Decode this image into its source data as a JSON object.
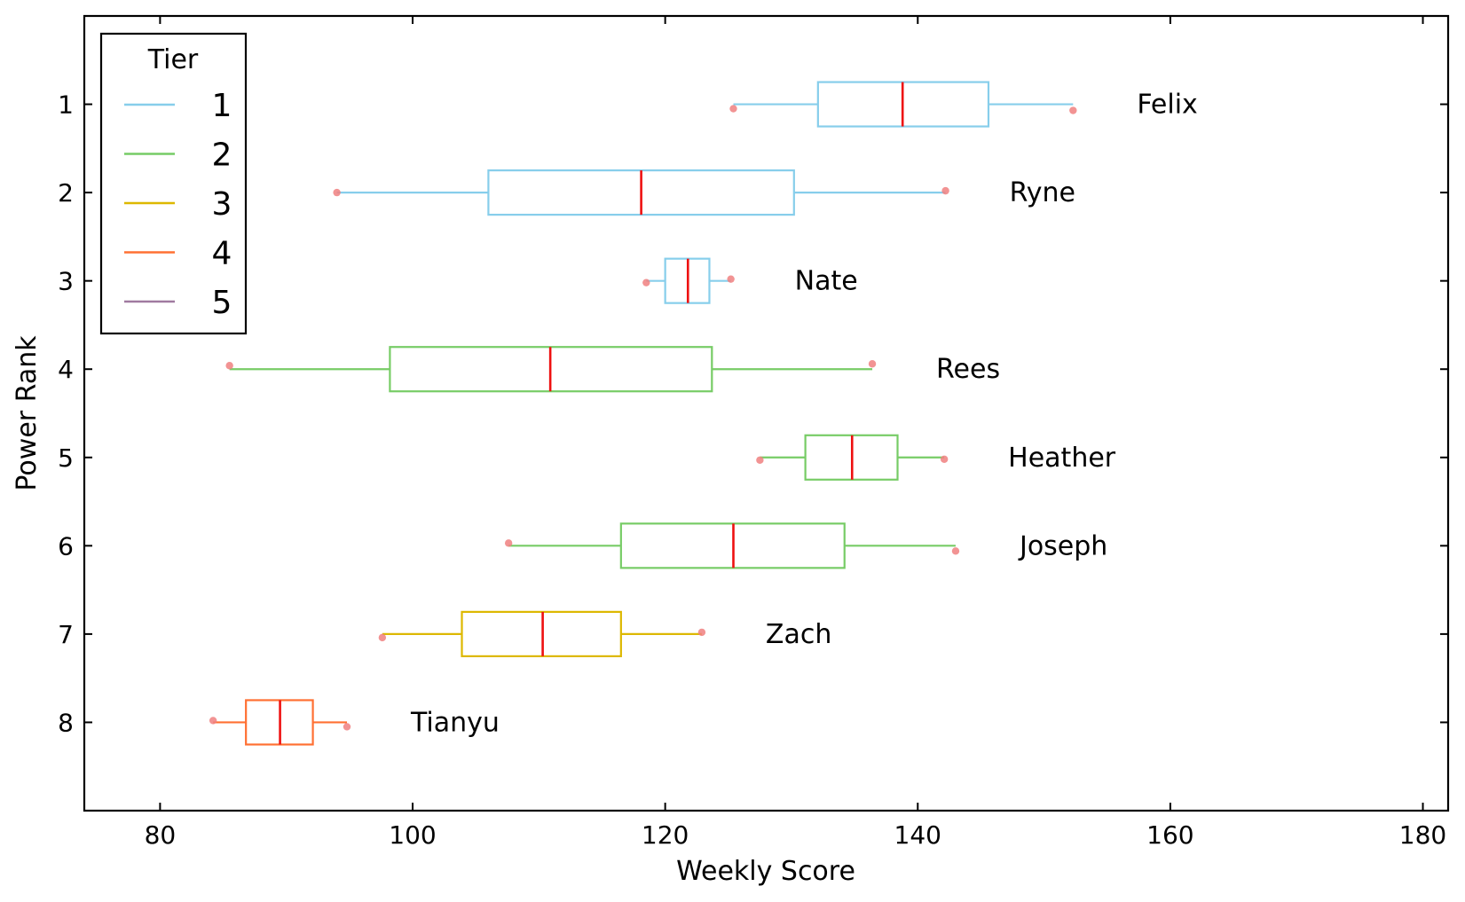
{
  "chart_data": {
    "type": "boxplot",
    "orientation": "horizontal",
    "xlabel": "Weekly Score",
    "ylabel": "Power Rank",
    "xlim": [
      74,
      182
    ],
    "ylim": [
      0,
      9
    ],
    "y_inverted": true,
    "xticks": [
      80,
      100,
      120,
      140,
      160,
      180
    ],
    "yticks": [
      1,
      2,
      3,
      4,
      5,
      6,
      7,
      8
    ],
    "legend": {
      "title": "Tier",
      "placement": "top-left",
      "entries": [
        {
          "label": "1",
          "color": "#87CEEB"
        },
        {
          "label": "2",
          "color": "#77CC66"
        },
        {
          "label": "3",
          "color": "#DDB800"
        },
        {
          "label": "4",
          "color": "#FF7033"
        },
        {
          "label": "5",
          "color": "#A07AA0"
        }
      ]
    },
    "median_color": "#EE1111",
    "extreme_point_color": "#F08080",
    "series": [
      {
        "rank": 1,
        "name": "Felix",
        "tier": "1",
        "min": 125.4,
        "q1": 132.1,
        "median": 138.8,
        "q3": 145.6,
        "max": 152.3,
        "points": [
          {
            "x": 125.4,
            "y": 1.05
          },
          {
            "x": 152.3,
            "y": 1.07
          }
        ]
      },
      {
        "rank": 2,
        "name": "Ryne",
        "tier": "1",
        "min": 94.0,
        "q1": 106.0,
        "median": 118.1,
        "q3": 130.2,
        "max": 142.2,
        "points": [
          {
            "x": 94.0,
            "y": 2.0
          },
          {
            "x": 142.2,
            "y": 1.98
          }
        ]
      },
      {
        "rank": 3,
        "name": "Nate",
        "tier": "1",
        "min": 118.5,
        "q1": 120.0,
        "median": 121.8,
        "q3": 123.5,
        "max": 125.2,
        "points": [
          {
            "x": 118.5,
            "y": 3.02
          },
          {
            "x": 125.2,
            "y": 2.98
          }
        ]
      },
      {
        "rank": 4,
        "name": "Rees",
        "tier": "2",
        "min": 85.5,
        "q1": 98.2,
        "median": 110.9,
        "q3": 123.7,
        "max": 136.4,
        "points": [
          {
            "x": 85.5,
            "y": 3.96
          },
          {
            "x": 136.4,
            "y": 3.94
          }
        ]
      },
      {
        "rank": 5,
        "name": "Heather",
        "tier": "2",
        "min": 127.5,
        "q1": 131.1,
        "median": 134.8,
        "q3": 138.4,
        "max": 142.1,
        "points": [
          {
            "x": 127.5,
            "y": 5.03
          },
          {
            "x": 142.1,
            "y": 5.02
          }
        ]
      },
      {
        "rank": 6,
        "name": "Joseph",
        "tier": "2",
        "min": 107.6,
        "q1": 116.5,
        "median": 125.4,
        "q3": 134.2,
        "max": 143.0,
        "points": [
          {
            "x": 107.6,
            "y": 5.97
          },
          {
            "x": 143.0,
            "y": 6.06
          }
        ]
      },
      {
        "rank": 7,
        "name": "Zach",
        "tier": "3",
        "min": 97.6,
        "q1": 103.9,
        "median": 110.3,
        "q3": 116.5,
        "max": 122.9,
        "points": [
          {
            "x": 97.6,
            "y": 7.04
          },
          {
            "x": 122.9,
            "y": 6.98
          }
        ]
      },
      {
        "rank": 8,
        "name": "Tianyu",
        "tier": "4",
        "min": 84.2,
        "q1": 86.8,
        "median": 89.5,
        "q3": 92.1,
        "max": 94.8,
        "points": [
          {
            "x": 84.2,
            "y": 7.98
          },
          {
            "x": 94.8,
            "y": 8.05
          }
        ]
      }
    ]
  }
}
